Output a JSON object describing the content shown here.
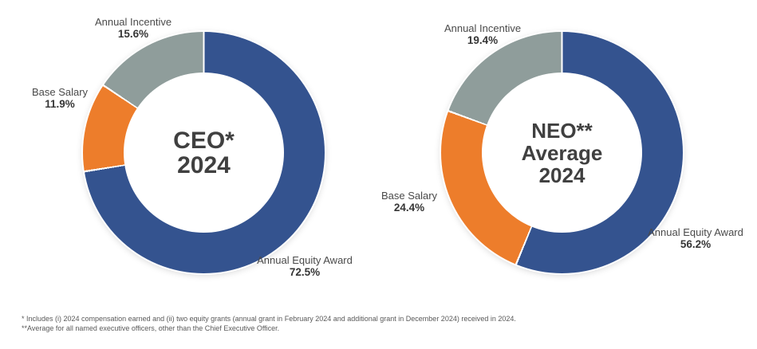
{
  "chart_data": [
    {
      "type": "donut",
      "title": "CEO* 2024",
      "title_lines": [
        "CEO*",
        "2024"
      ],
      "categories": [
        "Annual Equity Award",
        "Base Salary",
        "Annual Incentive"
      ],
      "values": [
        72.5,
        11.9,
        15.6
      ],
      "value_labels": [
        "72.5%",
        "11.9%",
        "15.6%"
      ],
      "colors": [
        "#34538F",
        "#ED7D2B",
        "#8F9D9B"
      ],
      "color_names": [
        "blue",
        "orange",
        "gray"
      ],
      "start": "top",
      "direction": "clockwise",
      "hole_ratio": 0.66,
      "legend_position": "outside-labels"
    },
    {
      "type": "donut",
      "title": "NEO** Average 2024",
      "title_lines": [
        "NEO**",
        "Average",
        "2024"
      ],
      "categories": [
        "Annual Equity Award",
        "Base Salary",
        "Annual Incentive"
      ],
      "values": [
        56.2,
        24.4,
        19.4
      ],
      "value_labels": [
        "56.2%",
        "24.4%",
        "19.4%"
      ],
      "colors": [
        "#34538F",
        "#ED7D2B",
        "#8F9D9B"
      ],
      "color_names": [
        "blue",
        "orange",
        "gray"
      ],
      "start": "top",
      "direction": "clockwise",
      "hole_ratio": 0.66,
      "legend_position": "outside-labels"
    }
  ],
  "footnotes": [
    "* Includes (i) 2024 compensation earned and (ii) two equity grants (annual grant in February 2024 and additional grant in December 2024) received in 2024.",
    "**Average for all named executive officers, other than the Chief Executive Officer."
  ]
}
